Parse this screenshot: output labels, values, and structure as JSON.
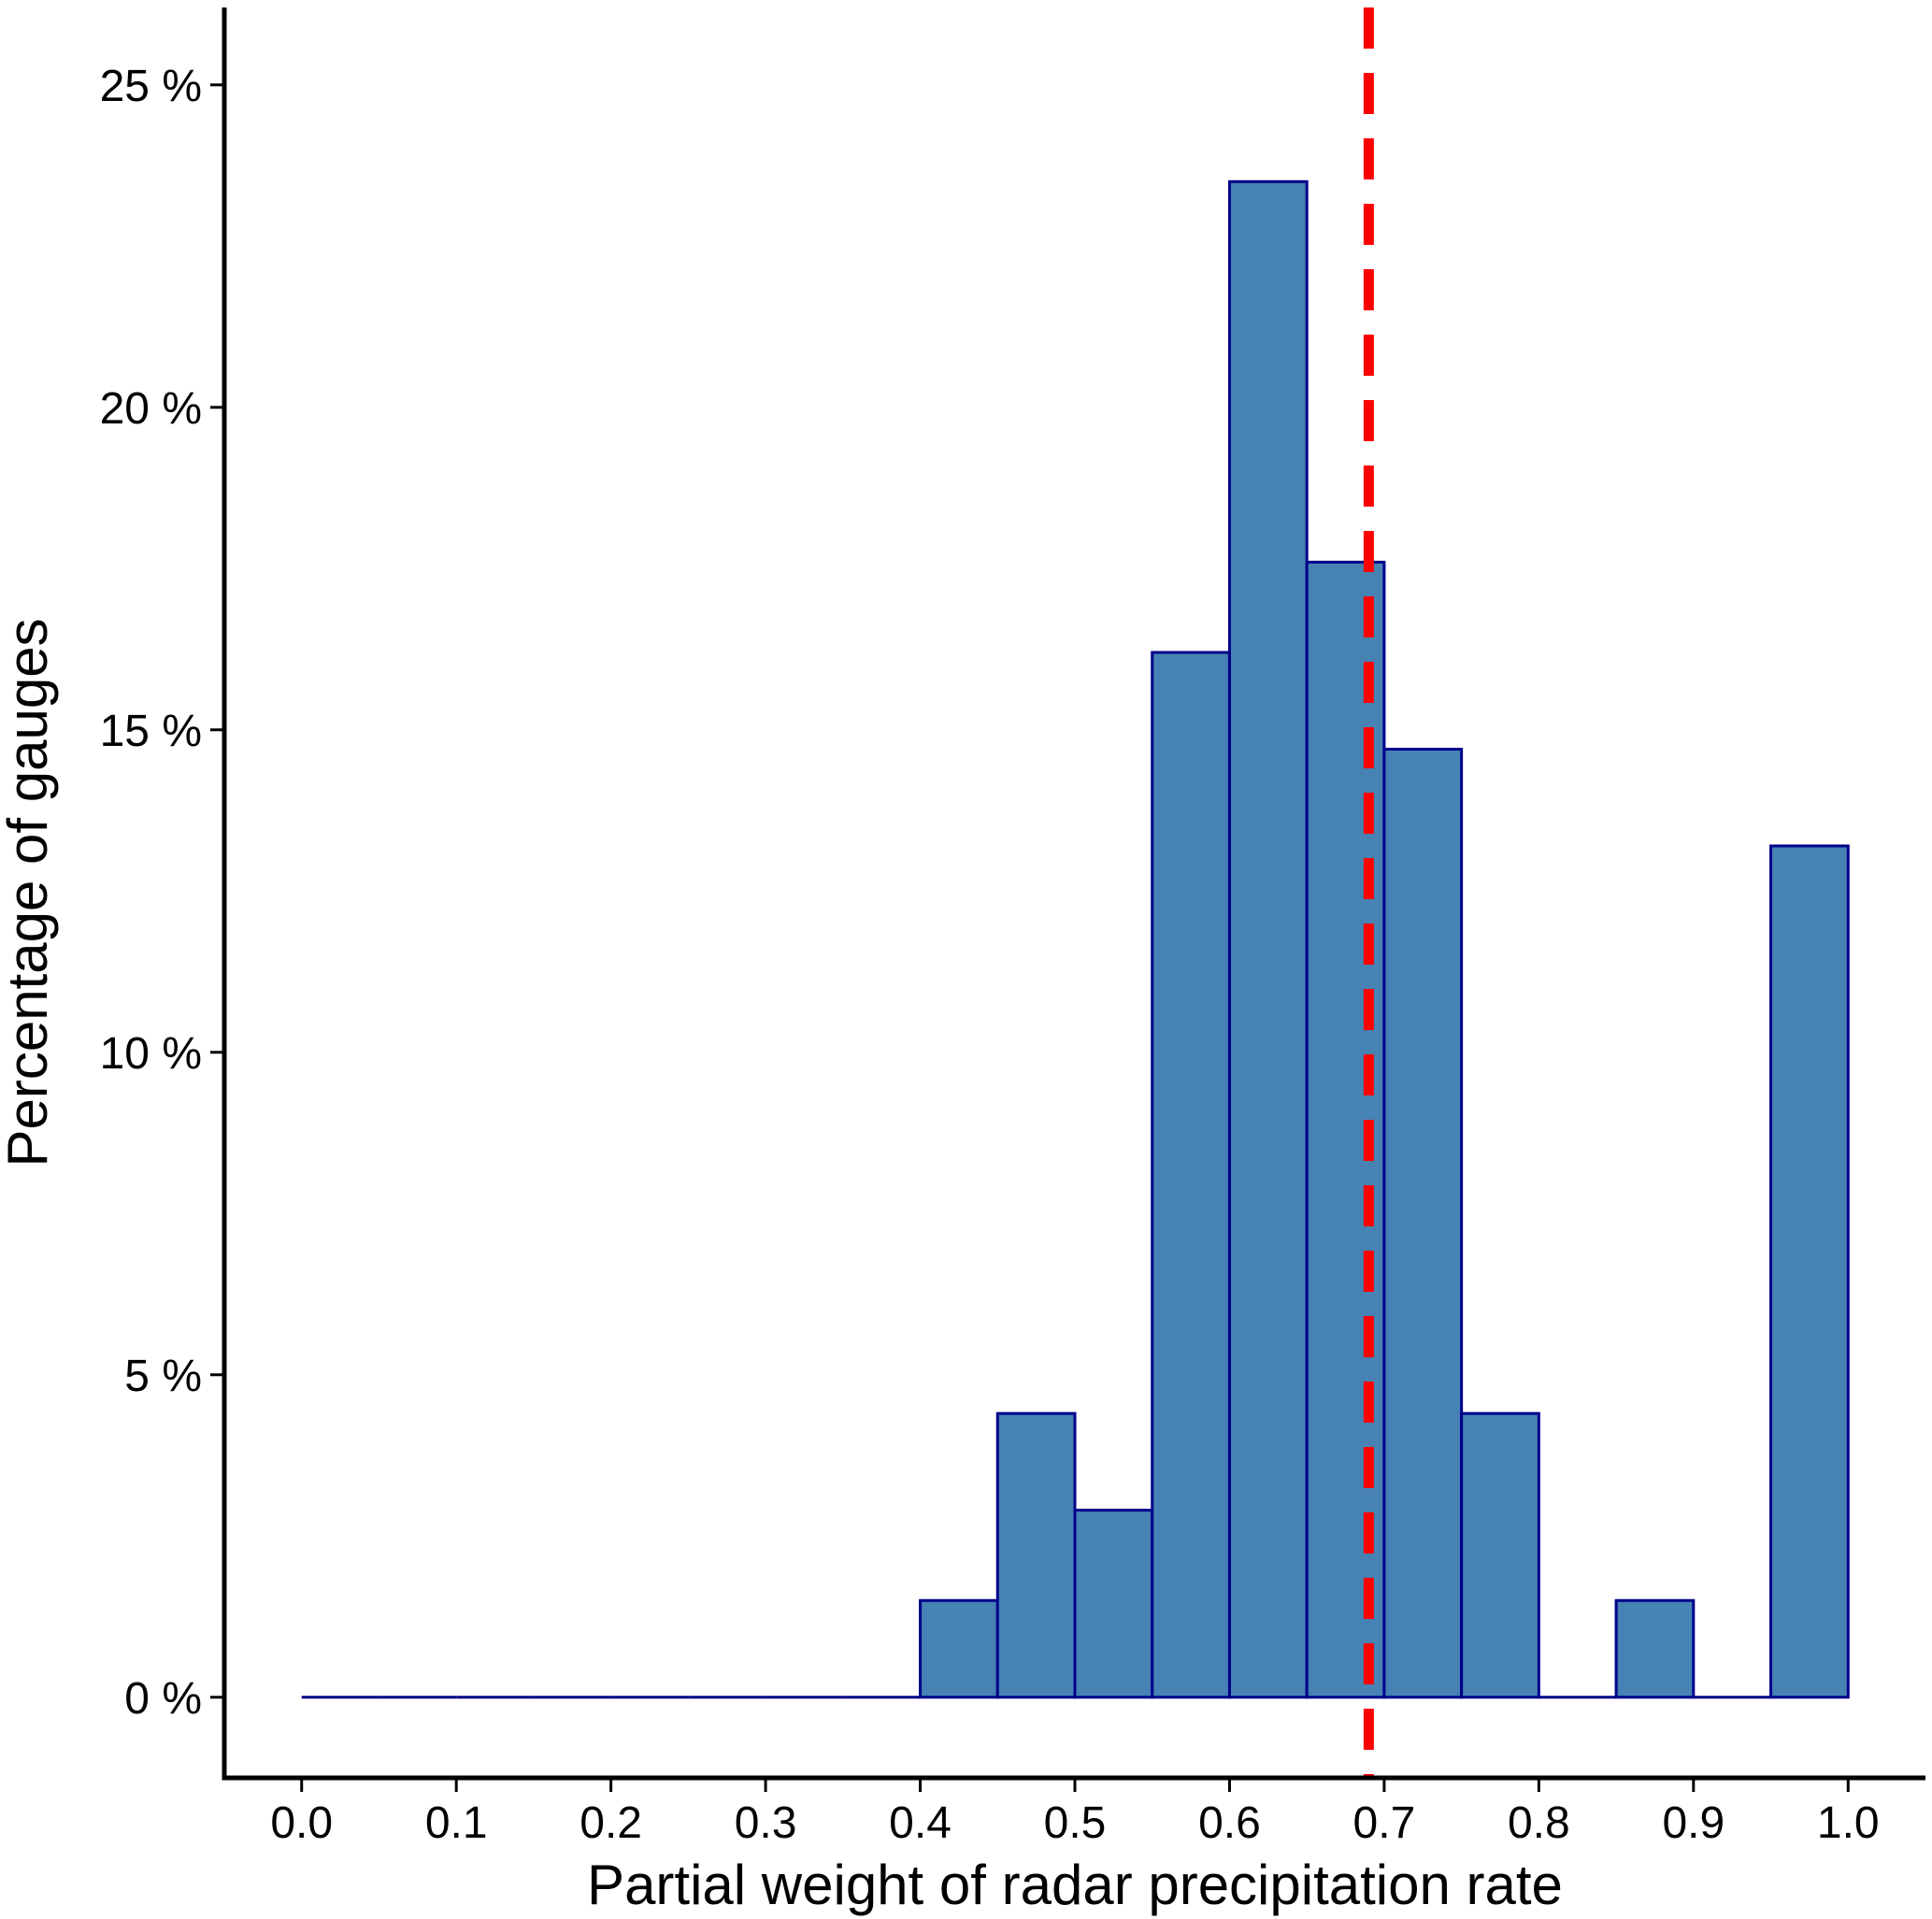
{
  "chart_data": {
    "type": "bar",
    "title": "",
    "xlabel": "Partial weight of radar precipitation rate",
    "ylabel": "Percentage of gauges",
    "bin_width": 0.05,
    "bins": [
      {
        "start": 0.0,
        "end": 0.05,
        "value": 0
      },
      {
        "start": 0.05,
        "end": 0.1,
        "value": 0
      },
      {
        "start": 0.1,
        "end": 0.15,
        "value": 0
      },
      {
        "start": 0.15,
        "end": 0.2,
        "value": 0
      },
      {
        "start": 0.2,
        "end": 0.25,
        "value": 0
      },
      {
        "start": 0.25,
        "end": 0.3,
        "value": 0
      },
      {
        "start": 0.3,
        "end": 0.35,
        "value": 0
      },
      {
        "start": 0.35,
        "end": 0.4,
        "value": 0
      },
      {
        "start": 0.4,
        "end": 0.45,
        "value": 1.5
      },
      {
        "start": 0.45,
        "end": 0.5,
        "value": 4.4
      },
      {
        "start": 0.5,
        "end": 0.55,
        "value": 2.9
      },
      {
        "start": 0.55,
        "end": 0.6,
        "value": 16.2
      },
      {
        "start": 0.6,
        "end": 0.65,
        "value": 23.5
      },
      {
        "start": 0.65,
        "end": 0.7,
        "value": 17.6
      },
      {
        "start": 0.7,
        "end": 0.75,
        "value": 14.7
      },
      {
        "start": 0.75,
        "end": 0.8,
        "value": 4.4
      },
      {
        "start": 0.8,
        "end": 0.85,
        "value": 0
      },
      {
        "start": 0.85,
        "end": 0.9,
        "value": 1.5
      },
      {
        "start": 0.9,
        "end": 0.95,
        "value": 0
      },
      {
        "start": 0.95,
        "end": 1.0,
        "value": 13.2
      }
    ],
    "reference_line": {
      "x": 0.69,
      "style": "dashed",
      "color": "#ff0000"
    },
    "xlim": [
      -0.05,
      1.05
    ],
    "ylim": [
      -1.25,
      26.2
    ],
    "x_ticks": [
      0.0,
      0.1,
      0.2,
      0.3,
      0.4,
      0.5,
      0.6,
      0.7,
      0.8,
      0.9,
      1.0
    ],
    "x_tick_labels": [
      "0.0",
      "0.1",
      "0.2",
      "0.3",
      "0.4",
      "0.5",
      "0.6",
      "0.7",
      "0.8",
      "0.9",
      "1.0"
    ],
    "y_ticks": [
      0,
      5,
      10,
      15,
      20,
      25
    ],
    "y_tick_labels": [
      "0 %",
      "5 %",
      "10 %",
      "15 %",
      "20 %",
      "25 %"
    ],
    "grid": false,
    "legend": "none",
    "colors": {
      "bar_fill": "#4682b4",
      "bar_stroke": "#00008b",
      "axis": "#000000",
      "reference_line": "#ff0000"
    }
  }
}
